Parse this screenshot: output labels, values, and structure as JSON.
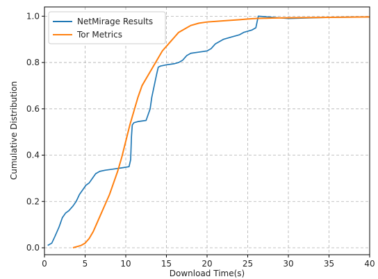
{
  "chart_data": {
    "type": "line",
    "xlabel": "Download Time(s)",
    "ylabel": "Cumulative Distribution",
    "xlim": [
      0,
      40
    ],
    "ylim": [
      -0.03,
      1.04
    ],
    "xticks": [
      0,
      5,
      10,
      15,
      20,
      25,
      30,
      35,
      40
    ],
    "yticks": [
      0.0,
      0.2,
      0.4,
      0.6,
      0.8,
      1.0
    ],
    "xtick_labels": [
      "0",
      "5",
      "10",
      "15",
      "20",
      "25",
      "30",
      "35",
      "40"
    ],
    "ytick_labels": [
      "0.0",
      "0.2",
      "0.4",
      "0.6",
      "0.8",
      "1.0"
    ],
    "grid": true,
    "legend_position": "top-left",
    "series": [
      {
        "name": "NetMirage Results",
        "color": "#1f77b4",
        "x": [
          0.4,
          0.9,
          1.3,
          1.8,
          2.2,
          2.6,
          3.0,
          3.5,
          3.9,
          4.3,
          4.7,
          5.1,
          5.5,
          5.9,
          6.3,
          6.8,
          7.5,
          8.5,
          9.5,
          10.4,
          10.6,
          10.7,
          10.8,
          11.0,
          11.5,
          12.5,
          13.0,
          13.2,
          13.5,
          13.8,
          14.0,
          14.3,
          15.0,
          16.0,
          16.5,
          17.0,
          17.5,
          18.0,
          19.0,
          20.0,
          20.5,
          21.0,
          22.0,
          23.0,
          24.0,
          24.5,
          25.5,
          26.0,
          26.3,
          30.0,
          35.0,
          40.0
        ],
        "y": [
          0.01,
          0.02,
          0.05,
          0.09,
          0.13,
          0.15,
          0.16,
          0.18,
          0.2,
          0.23,
          0.25,
          0.27,
          0.28,
          0.3,
          0.32,
          0.33,
          0.335,
          0.34,
          0.345,
          0.35,
          0.38,
          0.48,
          0.53,
          0.54,
          0.545,
          0.55,
          0.6,
          0.65,
          0.7,
          0.75,
          0.78,
          0.785,
          0.79,
          0.795,
          0.8,
          0.81,
          0.83,
          0.84,
          0.845,
          0.85,
          0.86,
          0.88,
          0.9,
          0.91,
          0.92,
          0.93,
          0.94,
          0.95,
          1.0,
          0.99,
          0.995,
          0.997
        ]
      },
      {
        "name": "Tor Metrics",
        "color": "#ff7f0e",
        "x": [
          3.5,
          4.0,
          4.5,
          5.0,
          5.5,
          6.0,
          6.5,
          7.0,
          7.5,
          8.0,
          8.5,
          9.0,
          9.5,
          10.0,
          10.5,
          11.0,
          11.5,
          12.0,
          12.5,
          13.0,
          13.5,
          14.0,
          14.5,
          15.0,
          15.5,
          16.0,
          16.5,
          17.0,
          17.5,
          18.0,
          19.0,
          20.0,
          22.0,
          24.0,
          25.0,
          26.0,
          28.0,
          30.0,
          35.0,
          40.0
        ],
        "y": [
          0.0,
          0.005,
          0.01,
          0.02,
          0.04,
          0.07,
          0.11,
          0.15,
          0.19,
          0.23,
          0.28,
          0.33,
          0.39,
          0.46,
          0.53,
          0.59,
          0.65,
          0.7,
          0.73,
          0.76,
          0.79,
          0.82,
          0.85,
          0.87,
          0.89,
          0.91,
          0.93,
          0.94,
          0.95,
          0.96,
          0.97,
          0.975,
          0.98,
          0.985,
          0.988,
          0.99,
          0.992,
          0.993,
          0.995,
          0.997
        ]
      }
    ]
  }
}
